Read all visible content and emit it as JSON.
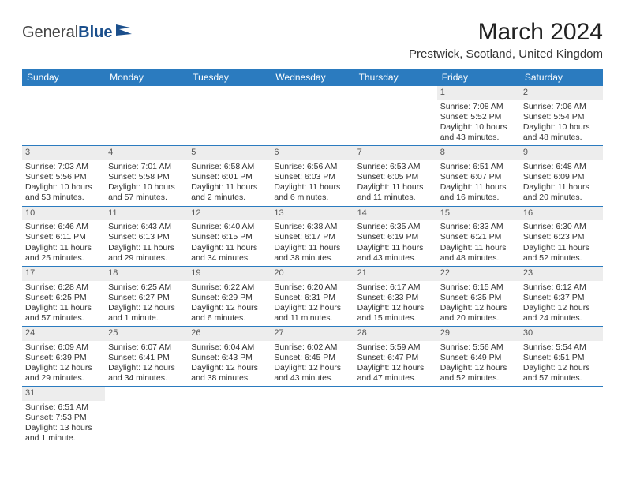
{
  "brand": {
    "part1": "General",
    "part2": "Blue"
  },
  "title": "March 2024",
  "location": "Prestwick, Scotland, United Kingdom",
  "colors": {
    "header_bg": "#2b7bbf",
    "header_fg": "#ffffff",
    "daynum_bg": "#ededed",
    "brand_blue": "#1b4f8c"
  },
  "weekdays": [
    "Sunday",
    "Monday",
    "Tuesday",
    "Wednesday",
    "Thursday",
    "Friday",
    "Saturday"
  ],
  "weeks": [
    [
      null,
      null,
      null,
      null,
      null,
      {
        "n": "1",
        "sr": "Sunrise: 7:08 AM",
        "ss": "Sunset: 5:52 PM",
        "dl1": "Daylight: 10 hours",
        "dl2": "and 43 minutes."
      },
      {
        "n": "2",
        "sr": "Sunrise: 7:06 AM",
        "ss": "Sunset: 5:54 PM",
        "dl1": "Daylight: 10 hours",
        "dl2": "and 48 minutes."
      }
    ],
    [
      {
        "n": "3",
        "sr": "Sunrise: 7:03 AM",
        "ss": "Sunset: 5:56 PM",
        "dl1": "Daylight: 10 hours",
        "dl2": "and 53 minutes."
      },
      {
        "n": "4",
        "sr": "Sunrise: 7:01 AM",
        "ss": "Sunset: 5:58 PM",
        "dl1": "Daylight: 10 hours",
        "dl2": "and 57 minutes."
      },
      {
        "n": "5",
        "sr": "Sunrise: 6:58 AM",
        "ss": "Sunset: 6:01 PM",
        "dl1": "Daylight: 11 hours",
        "dl2": "and 2 minutes."
      },
      {
        "n": "6",
        "sr": "Sunrise: 6:56 AM",
        "ss": "Sunset: 6:03 PM",
        "dl1": "Daylight: 11 hours",
        "dl2": "and 6 minutes."
      },
      {
        "n": "7",
        "sr": "Sunrise: 6:53 AM",
        "ss": "Sunset: 6:05 PM",
        "dl1": "Daylight: 11 hours",
        "dl2": "and 11 minutes."
      },
      {
        "n": "8",
        "sr": "Sunrise: 6:51 AM",
        "ss": "Sunset: 6:07 PM",
        "dl1": "Daylight: 11 hours",
        "dl2": "and 16 minutes."
      },
      {
        "n": "9",
        "sr": "Sunrise: 6:48 AM",
        "ss": "Sunset: 6:09 PM",
        "dl1": "Daylight: 11 hours",
        "dl2": "and 20 minutes."
      }
    ],
    [
      {
        "n": "10",
        "sr": "Sunrise: 6:46 AM",
        "ss": "Sunset: 6:11 PM",
        "dl1": "Daylight: 11 hours",
        "dl2": "and 25 minutes."
      },
      {
        "n": "11",
        "sr": "Sunrise: 6:43 AM",
        "ss": "Sunset: 6:13 PM",
        "dl1": "Daylight: 11 hours",
        "dl2": "and 29 minutes."
      },
      {
        "n": "12",
        "sr": "Sunrise: 6:40 AM",
        "ss": "Sunset: 6:15 PM",
        "dl1": "Daylight: 11 hours",
        "dl2": "and 34 minutes."
      },
      {
        "n": "13",
        "sr": "Sunrise: 6:38 AM",
        "ss": "Sunset: 6:17 PM",
        "dl1": "Daylight: 11 hours",
        "dl2": "and 38 minutes."
      },
      {
        "n": "14",
        "sr": "Sunrise: 6:35 AM",
        "ss": "Sunset: 6:19 PM",
        "dl1": "Daylight: 11 hours",
        "dl2": "and 43 minutes."
      },
      {
        "n": "15",
        "sr": "Sunrise: 6:33 AM",
        "ss": "Sunset: 6:21 PM",
        "dl1": "Daylight: 11 hours",
        "dl2": "and 48 minutes."
      },
      {
        "n": "16",
        "sr": "Sunrise: 6:30 AM",
        "ss": "Sunset: 6:23 PM",
        "dl1": "Daylight: 11 hours",
        "dl2": "and 52 minutes."
      }
    ],
    [
      {
        "n": "17",
        "sr": "Sunrise: 6:28 AM",
        "ss": "Sunset: 6:25 PM",
        "dl1": "Daylight: 11 hours",
        "dl2": "and 57 minutes."
      },
      {
        "n": "18",
        "sr": "Sunrise: 6:25 AM",
        "ss": "Sunset: 6:27 PM",
        "dl1": "Daylight: 12 hours",
        "dl2": "and 1 minute."
      },
      {
        "n": "19",
        "sr": "Sunrise: 6:22 AM",
        "ss": "Sunset: 6:29 PM",
        "dl1": "Daylight: 12 hours",
        "dl2": "and 6 minutes."
      },
      {
        "n": "20",
        "sr": "Sunrise: 6:20 AM",
        "ss": "Sunset: 6:31 PM",
        "dl1": "Daylight: 12 hours",
        "dl2": "and 11 minutes."
      },
      {
        "n": "21",
        "sr": "Sunrise: 6:17 AM",
        "ss": "Sunset: 6:33 PM",
        "dl1": "Daylight: 12 hours",
        "dl2": "and 15 minutes."
      },
      {
        "n": "22",
        "sr": "Sunrise: 6:15 AM",
        "ss": "Sunset: 6:35 PM",
        "dl1": "Daylight: 12 hours",
        "dl2": "and 20 minutes."
      },
      {
        "n": "23",
        "sr": "Sunrise: 6:12 AM",
        "ss": "Sunset: 6:37 PM",
        "dl1": "Daylight: 12 hours",
        "dl2": "and 24 minutes."
      }
    ],
    [
      {
        "n": "24",
        "sr": "Sunrise: 6:09 AM",
        "ss": "Sunset: 6:39 PM",
        "dl1": "Daylight: 12 hours",
        "dl2": "and 29 minutes."
      },
      {
        "n": "25",
        "sr": "Sunrise: 6:07 AM",
        "ss": "Sunset: 6:41 PM",
        "dl1": "Daylight: 12 hours",
        "dl2": "and 34 minutes."
      },
      {
        "n": "26",
        "sr": "Sunrise: 6:04 AM",
        "ss": "Sunset: 6:43 PM",
        "dl1": "Daylight: 12 hours",
        "dl2": "and 38 minutes."
      },
      {
        "n": "27",
        "sr": "Sunrise: 6:02 AM",
        "ss": "Sunset: 6:45 PM",
        "dl1": "Daylight: 12 hours",
        "dl2": "and 43 minutes."
      },
      {
        "n": "28",
        "sr": "Sunrise: 5:59 AM",
        "ss": "Sunset: 6:47 PM",
        "dl1": "Daylight: 12 hours",
        "dl2": "and 47 minutes."
      },
      {
        "n": "29",
        "sr": "Sunrise: 5:56 AM",
        "ss": "Sunset: 6:49 PM",
        "dl1": "Daylight: 12 hours",
        "dl2": "and 52 minutes."
      },
      {
        "n": "30",
        "sr": "Sunrise: 5:54 AM",
        "ss": "Sunset: 6:51 PM",
        "dl1": "Daylight: 12 hours",
        "dl2": "and 57 minutes."
      }
    ],
    [
      {
        "n": "31",
        "sr": "Sunrise: 6:51 AM",
        "ss": "Sunset: 7:53 PM",
        "dl1": "Daylight: 13 hours",
        "dl2": "and 1 minute."
      },
      null,
      null,
      null,
      null,
      null,
      null
    ]
  ]
}
